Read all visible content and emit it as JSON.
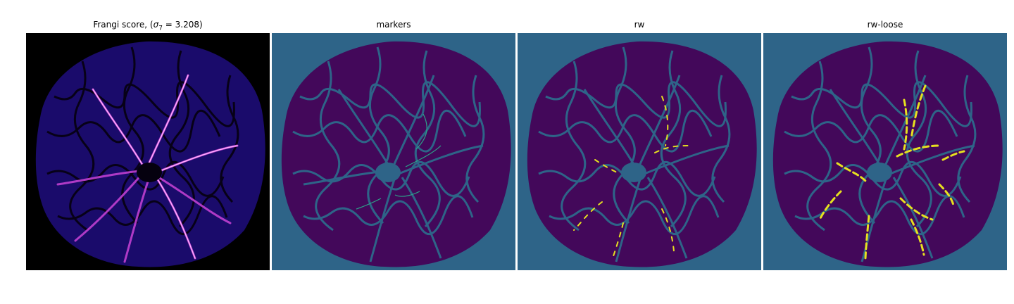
{
  "figure": {
    "panels": [
      {
        "id": "frangi",
        "title_prefix": "Frangi score, (",
        "title_sigma": "σ",
        "title_sub": "7",
        "title_suffix": " = 3.208)",
        "background": "#000000",
        "disc": "#1a0b6b",
        "vessel_color": "#f0a0ff"
      },
      {
        "id": "markers",
        "title": "markers",
        "background": "#2e6488",
        "disc": "#43085a",
        "marker_color": "#2ca48a"
      },
      {
        "id": "rw",
        "title": "rw",
        "background": "#2e6488",
        "disc": "#43085a",
        "label_color": "#e6e11f"
      },
      {
        "id": "rw-loose",
        "title": "rw-loose",
        "background": "#2e6488",
        "disc": "#43085a",
        "label_color": "#e6e11f"
      }
    ]
  }
}
